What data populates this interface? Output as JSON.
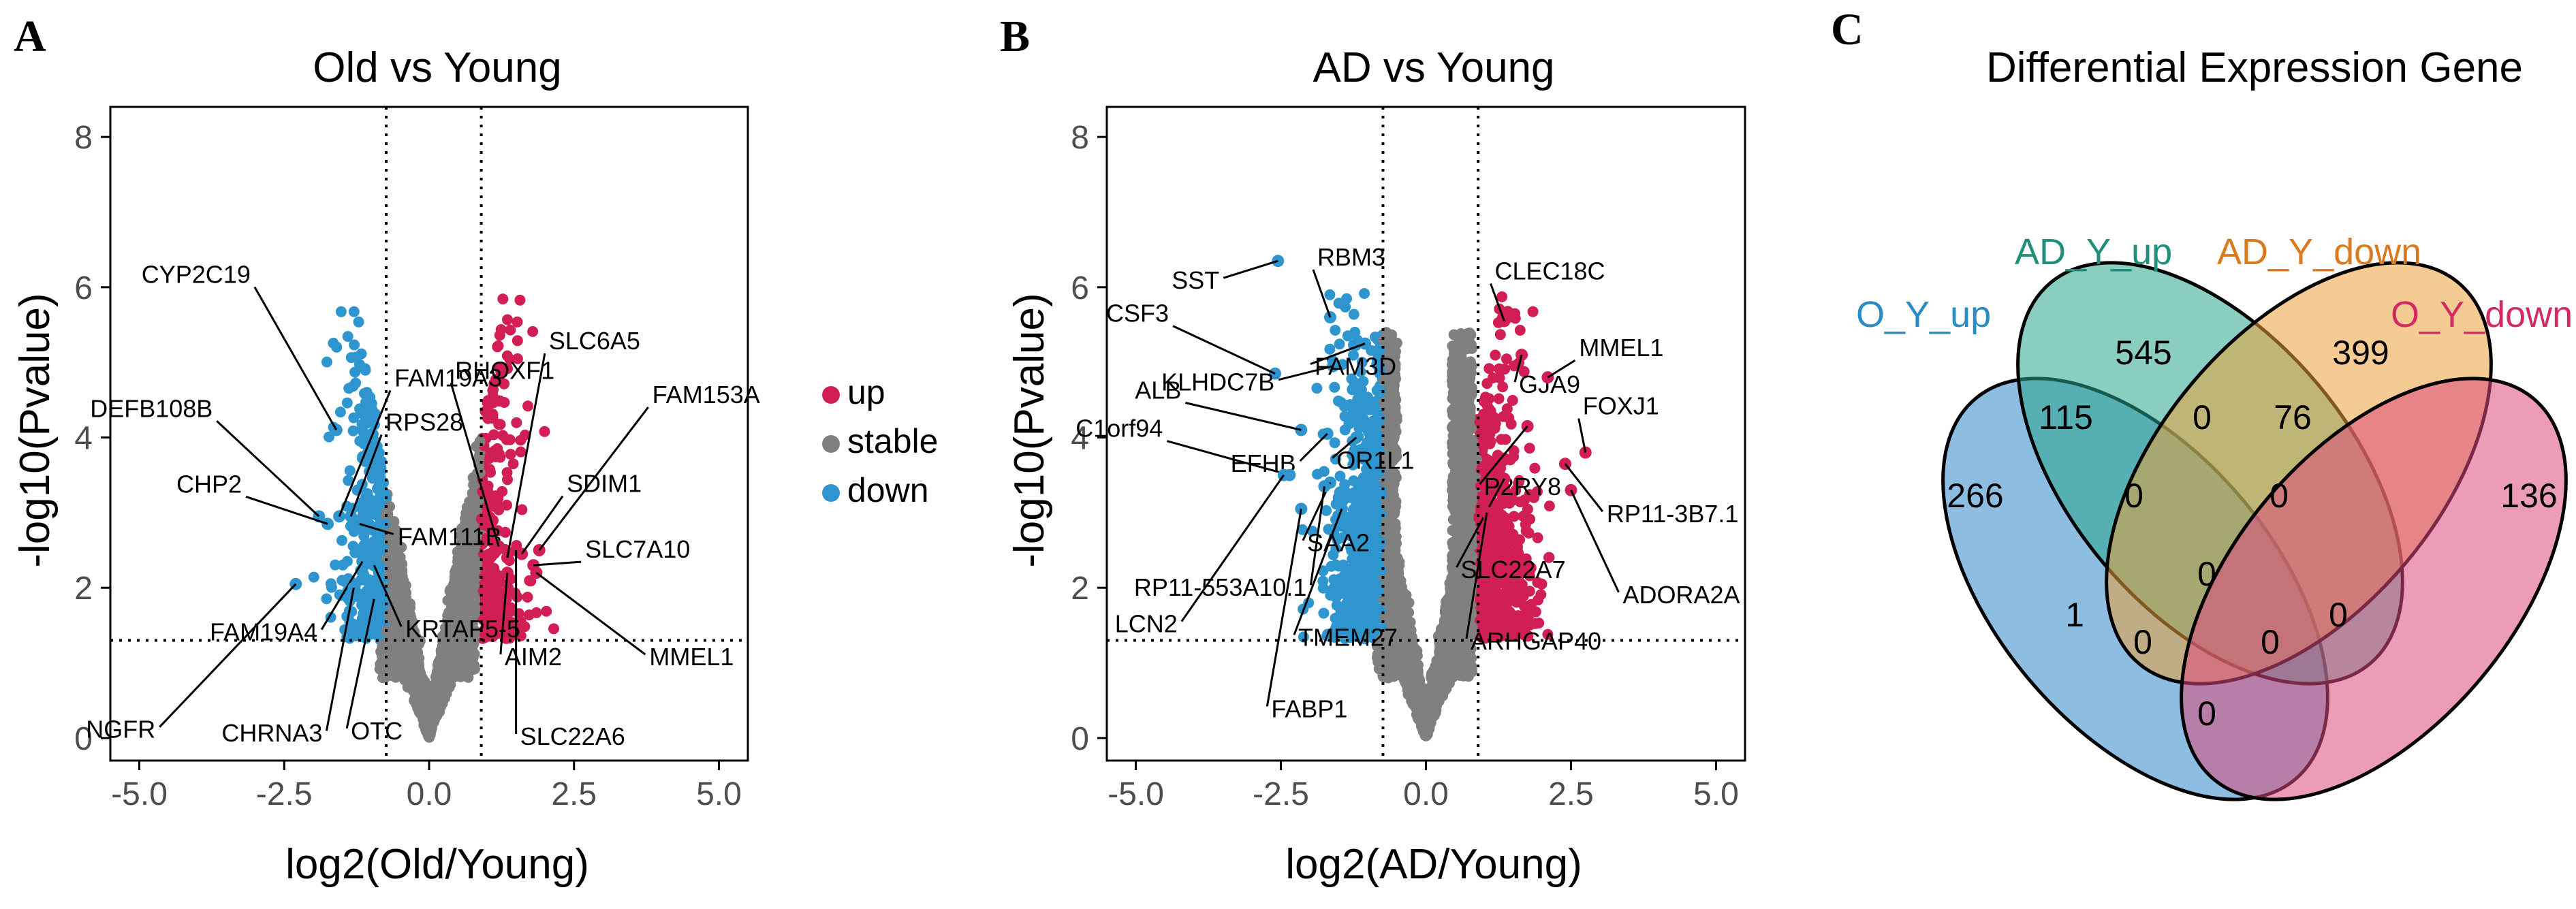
{
  "colors": {
    "up": "#d11f55",
    "stable": "#808080",
    "down": "#2e95cf"
  },
  "panels": {
    "A": {
      "letter": "A",
      "title": "Old vs Young",
      "xlabel": "log2(Old/Young)",
      "ylabel": "-log10(Pvalue)"
    },
    "B": {
      "letter": "B",
      "title": "AD vs Young",
      "xlabel": "log2(AD/Young)",
      "ylabel": "-log10(Pvalue)"
    },
    "C": {
      "letter": "C",
      "title": "Differential Expression Gene"
    }
  },
  "legend": {
    "up": "up",
    "stable": "stable",
    "down": "down"
  },
  "chart_data": [
    {
      "type": "scatter",
      "title": "Old vs Young",
      "xlabel": "log2(Old/Young)",
      "ylabel": "-log10(Pvalue)",
      "xlim": [
        -5.5,
        5.5
      ],
      "ylim": [
        -0.3,
        8.4
      ],
      "xticks": [
        -5.0,
        -2.5,
        0.0,
        2.5,
        5.0
      ],
      "xtick_labels": [
        "-5.0",
        "-2.5",
        "0.0",
        "2.5",
        "5.0"
      ],
      "yticks": [
        0,
        2,
        4,
        6,
        8
      ],
      "ytick_labels": [
        "0",
        "2",
        "4",
        "6",
        "8"
      ],
      "thresholds": {
        "fc_low": -0.74,
        "fc_high": 0.9,
        "p": 1.3
      },
      "grid": false,
      "labeled_genes": [
        {
          "gene": "CYP2C19",
          "x": -1.6,
          "y": 4.1,
          "group": "down"
        },
        {
          "gene": "FAM19A3",
          "x": -1.55,
          "y": 2.95,
          "group": "down"
        },
        {
          "gene": "DEFB108B",
          "x": -1.9,
          "y": 2.95,
          "group": "down"
        },
        {
          "gene": "RPS28",
          "x": -1.35,
          "y": 2.95,
          "group": "down"
        },
        {
          "gene": "CHP2",
          "x": -1.75,
          "y": 2.85,
          "group": "down"
        },
        {
          "gene": "FAM111B",
          "x": -1.2,
          "y": 2.85,
          "group": "down"
        },
        {
          "gene": "FAM19A4",
          "x": -1.15,
          "y": 2.35,
          "group": "down"
        },
        {
          "gene": "KRTAP5-5",
          "x": -0.95,
          "y": 2.3,
          "group": "down"
        },
        {
          "gene": "NGFR",
          "x": -2.3,
          "y": 2.05,
          "group": "down"
        },
        {
          "gene": "CHRNA3",
          "x": -1.3,
          "y": 2.0,
          "group": "down"
        },
        {
          "gene": "OTC",
          "x": -0.95,
          "y": 1.85,
          "group": "down"
        },
        {
          "gene": "SLC6A5",
          "x": 1.35,
          "y": 2.4,
          "group": "up"
        },
        {
          "gene": "RHOXF1",
          "x": 1.2,
          "y": 2.55,
          "group": "up"
        },
        {
          "gene": "FAM153A",
          "x": 1.9,
          "y": 2.5,
          "group": "up"
        },
        {
          "gene": "SDIM1",
          "x": 1.6,
          "y": 2.45,
          "group": "up"
        },
        {
          "gene": "SLC7A10",
          "x": 1.8,
          "y": 2.3,
          "group": "up"
        },
        {
          "gene": "AIM2",
          "x": 1.35,
          "y": 2.2,
          "group": "up"
        },
        {
          "gene": "MMEL1",
          "x": 1.85,
          "y": 2.2,
          "group": "up"
        },
        {
          "gene": "SLC22A6",
          "x": 1.5,
          "y": 2.5,
          "group": "up"
        }
      ]
    },
    {
      "type": "scatter",
      "title": "AD vs Young",
      "xlabel": "log2(AD/Young)",
      "ylabel": "-log10(Pvalue)",
      "xlim": [
        -5.5,
        5.5
      ],
      "ylim": [
        -0.3,
        8.4
      ],
      "xticks": [
        -5.0,
        -2.5,
        0.0,
        2.5,
        5.0
      ],
      "xtick_labels": [
        "-5.0",
        "-2.5",
        "0.0",
        "2.5",
        "5.0"
      ],
      "yticks": [
        0,
        2,
        4,
        6,
        8
      ],
      "ytick_labels": [
        "0",
        "2",
        "4",
        "6",
        "8"
      ],
      "thresholds": {
        "fc_low": -0.74,
        "fc_high": 0.9,
        "p": 1.3
      },
      "grid": false,
      "labeled_genes": [
        {
          "gene": "SST",
          "x": -2.55,
          "y": 6.35,
          "group": "down"
        },
        {
          "gene": "CSF3",
          "x": -2.6,
          "y": 4.85,
          "group": "down"
        },
        {
          "gene": "RBM3",
          "x": -1.65,
          "y": 5.6,
          "group": "down"
        },
        {
          "gene": "KLHDC7B",
          "x": -1.6,
          "y": 4.95,
          "group": "down"
        },
        {
          "gene": "FAM3D",
          "x": -1.05,
          "y": 5.25,
          "group": "down"
        },
        {
          "gene": "ALB",
          "x": -2.15,
          "y": 4.1,
          "group": "down"
        },
        {
          "gene": "EFHB",
          "x": -1.7,
          "y": 4.05,
          "group": "down"
        },
        {
          "gene": "OR1L1",
          "x": -1.2,
          "y": 4.0,
          "group": "down"
        },
        {
          "gene": "C1orf94",
          "x": -2.35,
          "y": 3.5,
          "group": "down"
        },
        {
          "gene": "SAA2",
          "x": -1.65,
          "y": 3.4,
          "group": "down"
        },
        {
          "gene": "RP11-553A10.1",
          "x": -1.75,
          "y": 3.35,
          "group": "down"
        },
        {
          "gene": "TMEM27",
          "x": -1.45,
          "y": 3.05,
          "group": "down"
        },
        {
          "gene": "LCN2",
          "x": -2.45,
          "y": 3.5,
          "group": "down"
        },
        {
          "gene": "FABP1",
          "x": -2.15,
          "y": 3.05,
          "group": "down"
        },
        {
          "gene": "CLEC18C",
          "x": 1.35,
          "y": 5.55,
          "group": "up"
        },
        {
          "gene": "GJA9",
          "x": 1.65,
          "y": 5.1,
          "group": "up"
        },
        {
          "gene": "MMEL1",
          "x": 2.1,
          "y": 4.8,
          "group": "up"
        },
        {
          "gene": "P2RY8",
          "x": 1.75,
          "y": 4.15,
          "group": "up"
        },
        {
          "gene": "FOXJ1",
          "x": 2.75,
          "y": 3.8,
          "group": "up"
        },
        {
          "gene": "RP11-3B7.1",
          "x": 2.4,
          "y": 3.65,
          "group": "up"
        },
        {
          "gene": "SLC22A7",
          "x": 1.35,
          "y": 3.45,
          "group": "up"
        },
        {
          "gene": "ADORA2A",
          "x": 2.5,
          "y": 3.3,
          "group": "up"
        },
        {
          "gene": "ARHGAP40",
          "x": 1.05,
          "y": 3.0,
          "group": "up"
        }
      ]
    },
    {
      "type": "venn",
      "title": "Differential Expression Gene",
      "sets": [
        {
          "name": "O_Y_up",
          "color": "#2f87c8",
          "label_color": "#2b8cc4"
        },
        {
          "name": "AD_Y_up",
          "color": "#2aa58e",
          "label_color": "#1f8f7a"
        },
        {
          "name": "AD_Y_down",
          "color": "#eba13a",
          "label_color": "#d97a1e"
        },
        {
          "name": "O_Y_down",
          "color": "#dd4b7e",
          "label_color": "#d12b62"
        }
      ],
      "regions": [
        {
          "sets": [
            "O_Y_up"
          ],
          "count": 266
        },
        {
          "sets": [
            "AD_Y_up"
          ],
          "count": 545
        },
        {
          "sets": [
            "AD_Y_down"
          ],
          "count": 399
        },
        {
          "sets": [
            "O_Y_down"
          ],
          "count": 136
        },
        {
          "sets": [
            "O_Y_up",
            "AD_Y_up"
          ],
          "count": 115
        },
        {
          "sets": [
            "AD_Y_up",
            "AD_Y_down"
          ],
          "count": 0
        },
        {
          "sets": [
            "AD_Y_down",
            "O_Y_down"
          ],
          "count": 76
        },
        {
          "sets": [
            "O_Y_up",
            "AD_Y_up",
            "AD_Y_down"
          ],
          "count": 0
        },
        {
          "sets": [
            "AD_Y_up",
            "AD_Y_down",
            "O_Y_down"
          ],
          "count": 0
        },
        {
          "sets": [
            "O_Y_up",
            "AD_Y_up",
            "AD_Y_down",
            "O_Y_down"
          ],
          "count": 0
        },
        {
          "sets": [
            "O_Y_up",
            "AD_Y_down"
          ],
          "count": 1
        },
        {
          "sets": [
            "AD_Y_up",
            "O_Y_down"
          ],
          "count": 0
        },
        {
          "sets": [
            "O_Y_up",
            "AD_Y_down",
            "O_Y_down"
          ],
          "count": 0
        },
        {
          "sets": [
            "O_Y_up",
            "AD_Y_up",
            "O_Y_down"
          ],
          "count": 0
        },
        {
          "sets": [
            "O_Y_up",
            "O_Y_down"
          ],
          "count": 0
        }
      ]
    }
  ]
}
